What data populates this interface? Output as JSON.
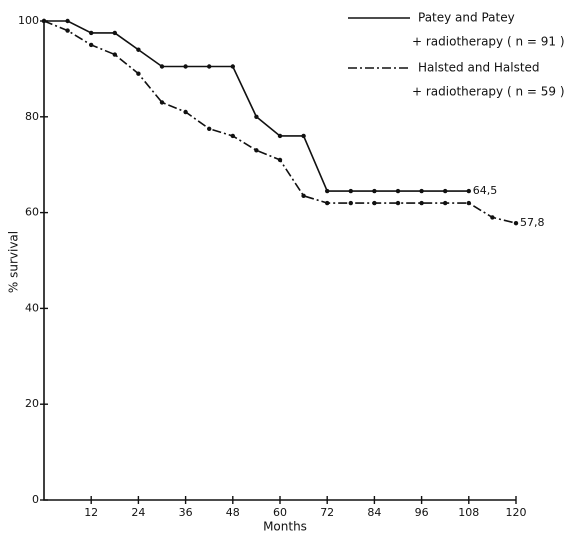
{
  "chart_data": {
    "type": "line",
    "x_label": "Months",
    "y_label": "% survival",
    "x": [
      0,
      6,
      12,
      18,
      24,
      30,
      36,
      42,
      48,
      54,
      60,
      66,
      72,
      78,
      84,
      90,
      96,
      102,
      108,
      114,
      120
    ],
    "xlim": [
      0,
      120
    ],
    "xticks": [
      12,
      24,
      36,
      48,
      60,
      72,
      84,
      96,
      108,
      120
    ],
    "ylim": [
      0,
      100
    ],
    "yticks": [
      0,
      20,
      40,
      60,
      80,
      100
    ],
    "series": [
      {
        "name": "Patey and Patey",
        "note": "+ radiotherapy ( n = 91 )",
        "color": "#111111",
        "dash": "solid",
        "values": [
          100,
          100,
          97.5,
          97.5,
          94,
          90.5,
          90.5,
          90.5,
          90.5,
          80,
          76,
          76,
          64.5,
          64.5,
          64.5,
          64.5,
          64.5,
          64.5,
          64.5,
          null,
          null
        ],
        "value_labels": [
          null,
          null,
          null,
          null,
          null,
          null,
          null,
          null,
          null,
          null,
          null,
          null,
          null,
          null,
          null,
          null,
          null,
          null,
          "64,5",
          null,
          null
        ]
      },
      {
        "name": "Halsted and Halsted",
        "note": "+ radiotherapy ( n = 59 )",
        "color": "#111111",
        "dash": "dashdot",
        "values": [
          100,
          98,
          95,
          93,
          89,
          83,
          81,
          77.5,
          76,
          73,
          71,
          63.5,
          62,
          62,
          62,
          62,
          62,
          62,
          62,
          59,
          57.8
        ],
        "value_labels": [
          null,
          null,
          null,
          null,
          null,
          null,
          null,
          null,
          null,
          null,
          null,
          null,
          null,
          null,
          null,
          null,
          null,
          null,
          null,
          null,
          "57,8"
        ]
      }
    ]
  }
}
